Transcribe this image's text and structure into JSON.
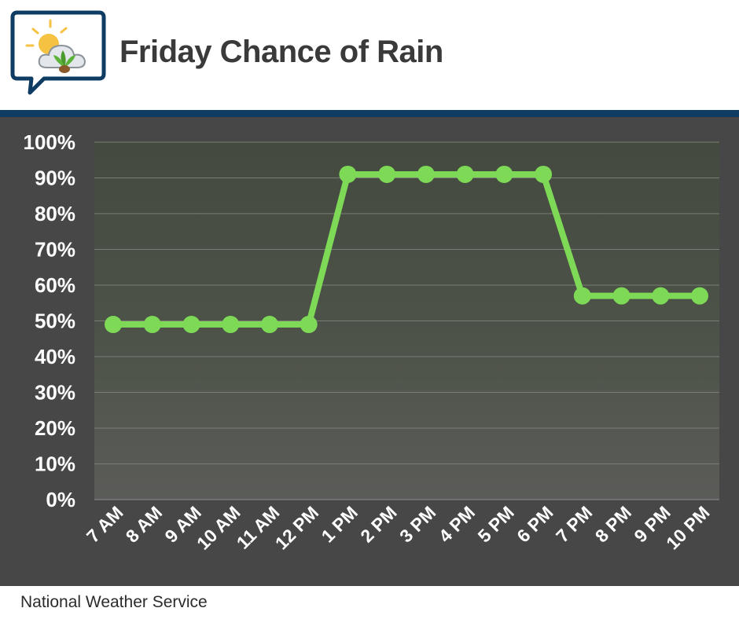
{
  "header": {
    "title": "Friday Chance of Rain"
  },
  "footer": {
    "source": "National Weather Service"
  },
  "colors": {
    "line": "#7ed957",
    "panel": "#474747",
    "divider": "#0f3c63",
    "title": "#3a3a3a"
  },
  "icons": {
    "logo": "weather-speech-bubble-icon"
  },
  "chart_data": {
    "type": "line",
    "title": "Friday Chance of Rain",
    "xlabel": "",
    "ylabel": "",
    "categories": [
      "7 AM",
      "8 AM",
      "9 AM",
      "10 AM",
      "11 AM",
      "12 PM",
      "1 PM",
      "2 PM",
      "3 PM",
      "4 PM",
      "5 PM",
      "6 PM",
      "7 PM",
      "8 PM",
      "9 PM",
      "10 PM"
    ],
    "series": [
      {
        "values": [
          49,
          49,
          49,
          49,
          49,
          49,
          91,
          91,
          91,
          91,
          91,
          91,
          57,
          57,
          57,
          57
        ]
      }
    ],
    "ylim": [
      0,
      100
    ],
    "yticks": [
      "0%",
      "10%",
      "20%",
      "30%",
      "40%",
      "50%",
      "60%",
      "70%",
      "80%",
      "90%",
      "100%"
    ],
    "grid": true,
    "legend": "none"
  }
}
